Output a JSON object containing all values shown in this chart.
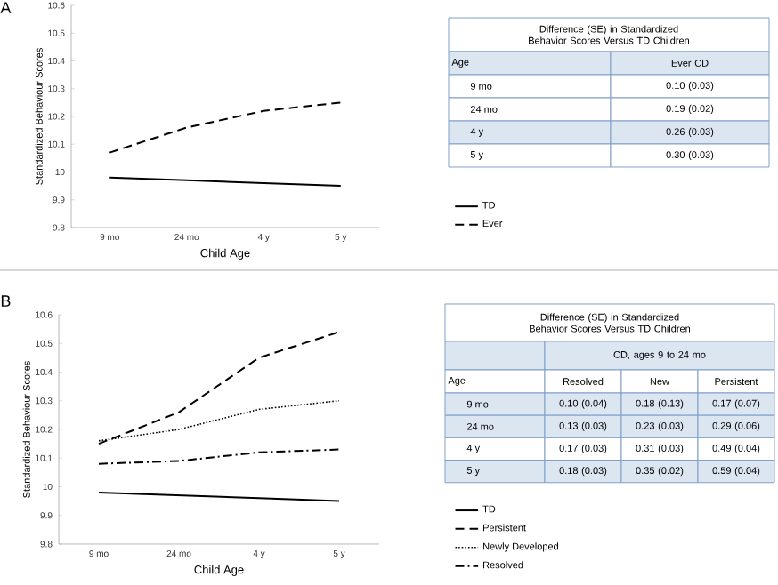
{
  "chart_data": [
    {
      "type": "line",
      "title": "A",
      "categories": [
        "9 mo",
        "24 mo",
        "4 y",
        "5 y"
      ],
      "xlabel": "Child Age",
      "ylabel": "Standardized Behaviour Scores",
      "ylim": [
        9.8,
        10.6
      ],
      "yticks": [
        9.8,
        9.9,
        10,
        10.1,
        10.2,
        10.3,
        10.4,
        10.5,
        10.6
      ],
      "legend": "right",
      "series": [
        {
          "name": "TD",
          "color": "#000000",
          "line_style": "solid",
          "values": [
            9.98,
            9.97,
            9.96,
            9.95
          ]
        },
        {
          "name": "Ever",
          "color": "#000000",
          "line_style": "dashed",
          "values": [
            10.07,
            10.16,
            10.22,
            10.25
          ]
        }
      ],
      "annotations": [
        "Difference (SE) in Standardized Behavior Scores Versus TD Children",
        "Age",
        "Ever CD",
        "9 mo",
        "0.10 (0.03)",
        "24 mo",
        "0.19 (0.02)",
        "4 y",
        "0.26 (0.03)",
        "5 y",
        "0.30 (0.03)"
      ]
    },
    {
      "type": "line",
      "title": "B",
      "categories": [
        "9 mo",
        "24 mo",
        "4 y",
        "5 y"
      ],
      "xlabel": "Child Age",
      "ylabel": "Standardized Behaviour Scores",
      "ylim": [
        9.8,
        10.6
      ],
      "yticks": [
        9.8,
        9.9,
        10,
        10.1,
        10.2,
        10.3,
        10.4,
        10.5,
        10.6
      ],
      "legend": "right",
      "series": [
        {
          "name": "TD",
          "color": "#000000",
          "line_style": "solid",
          "values": [
            9.98,
            9.97,
            9.96,
            9.95
          ]
        },
        {
          "name": "Persistent",
          "color": "#000000",
          "line_style": "dashed",
          "values": [
            10.15,
            10.26,
            10.45,
            10.54
          ]
        },
        {
          "name": "Newly Developed",
          "color": "#000000",
          "line_style": "dotted",
          "values": [
            10.16,
            10.2,
            10.27,
            10.3
          ]
        },
        {
          "name": "Resolved",
          "color": "#000000",
          "line_style": "dashdot",
          "values": [
            10.08,
            10.09,
            10.12,
            10.13
          ]
        }
      ],
      "annotations": [
        "Difference (SE) in Standardized Behavior Scores Versus TD Children",
        "CD, ages 9 to 24 mo",
        "Age",
        "Resolved",
        "New",
        "Persistent",
        "9 mo",
        "0.10 (0.04)",
        "0.18 (0.13)",
        "0.17 (0.07)",
        "24 mo",
        "0.13 (0.03)",
        "0.23 (0.03)",
        "0.29 (0.06)",
        "4 y",
        "0.17 (0.03)",
        "0.31 (0.03)",
        "0.49 (0.04)",
        "5 y",
        "0.18 (0.03)",
        "0.35 (0.02)",
        "0.59 (0.04)"
      ]
    }
  ]
}
